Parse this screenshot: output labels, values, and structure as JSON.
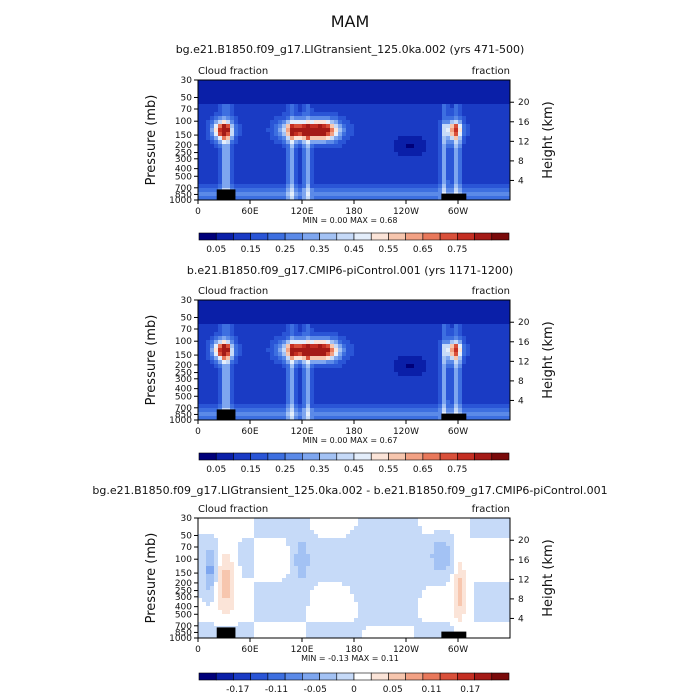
{
  "page_title": "MAM",
  "colors": {
    "cool_blue_dark": "#0a1a8c",
    "cool_blue": "#2a55d6",
    "light_blue": "#a8c8f0",
    "pale": "#e6f0fb",
    "warm_pink": "#f6bfa6",
    "warm_red": "#d2452f",
    "topography": "#000000"
  },
  "chart_data": [
    {
      "type": "heatmap",
      "title": "bg.e21.B1850.f09_g17.LIGtransient_125.0ka.002 (yrs 471-500)",
      "left_label": "Cloud fraction",
      "right_label": "fraction",
      "ylabel": "Pressure (mb)",
      "ylabel_right": "Height (km)",
      "x_ticks": [
        "0",
        "60E",
        "120E",
        "180",
        "120W",
        "60W"
      ],
      "y_ticks": [
        "30",
        "50",
        "70",
        "100",
        "150",
        "200",
        "250",
        "300",
        "400",
        "500",
        "700",
        "850",
        "1000"
      ],
      "y2_ticks": [
        "20",
        "16",
        "12",
        "8",
        "4"
      ],
      "stats": "MIN =    0.00   MAX =    0.68",
      "min": 0.0,
      "max": 0.68,
      "colorbar": {
        "labels": [
          "0.05",
          "0.15",
          "0.25",
          "0.35",
          "0.45",
          "0.55",
          "0.65",
          "0.75"
        ],
        "colors": [
          "#00007a",
          "#0a1fa8",
          "#1a3bc4",
          "#2a55d6",
          "#3d6fe0",
          "#5b8ae8",
          "#7ea6ef",
          "#a3c2f4",
          "#c6daf8",
          "#e4eefb",
          "#fbe4d8",
          "#f7c6ae",
          "#f2a184",
          "#e8785b",
          "#d9503a",
          "#c42e22",
          "#a41a16",
          "#7a0a0a"
        ]
      },
      "pattern": "mean"
    },
    {
      "type": "heatmap",
      "title": "b.e21.B1850.f09_g17.CMIP6-piControl.001 (yrs 1171-1200)",
      "left_label": "Cloud fraction",
      "right_label": "fraction",
      "ylabel": "Pressure (mb)",
      "ylabel_right": "Height (km)",
      "x_ticks": [
        "0",
        "60E",
        "120E",
        "180",
        "120W",
        "60W"
      ],
      "y_ticks": [
        "30",
        "50",
        "70",
        "100",
        "150",
        "200",
        "250",
        "300",
        "400",
        "500",
        "700",
        "850",
        "1000"
      ],
      "y2_ticks": [
        "20",
        "16",
        "12",
        "8",
        "4"
      ],
      "stats": "MIN =    0.00   MAX =    0.67",
      "min": 0.0,
      "max": 0.67,
      "colorbar": {
        "labels": [
          "0.05",
          "0.15",
          "0.25",
          "0.35",
          "0.45",
          "0.55",
          "0.65",
          "0.75"
        ],
        "colors": [
          "#00007a",
          "#0a1fa8",
          "#1a3bc4",
          "#2a55d6",
          "#3d6fe0",
          "#5b8ae8",
          "#7ea6ef",
          "#a3c2f4",
          "#c6daf8",
          "#e4eefb",
          "#fbe4d8",
          "#f7c6ae",
          "#f2a184",
          "#e8785b",
          "#d9503a",
          "#c42e22",
          "#a41a16",
          "#7a0a0a"
        ]
      },
      "pattern": "mean"
    },
    {
      "type": "heatmap",
      "title": "bg.e21.B1850.f09_g17.LIGtransient_125.0ka.002 - b.e21.B1850.f09_g17.CMIP6-piControl.001",
      "left_label": "Cloud fraction",
      "right_label": "fraction",
      "ylabel": "Pressure (mb)",
      "ylabel_right": "Height (km)",
      "x_ticks": [
        "0",
        "60E",
        "120E",
        "180",
        "120W",
        "60W"
      ],
      "y_ticks": [
        "30",
        "50",
        "70",
        "100",
        "150",
        "200",
        "250",
        "300",
        "400",
        "500",
        "700",
        "850",
        "1000"
      ],
      "y2_ticks": [
        "20",
        "16",
        "12",
        "8",
        "4"
      ],
      "stats": "MIN =   -0.13   MAX =    0.11",
      "min": -0.13,
      "max": 0.11,
      "colorbar": {
        "labels": [
          "-0.17",
          "-0.11",
          "-0.05",
          "0",
          "0.05",
          "0.11",
          "0.17"
        ],
        "colors": [
          "#00007a",
          "#0a1fa8",
          "#1a3bc4",
          "#2a55d6",
          "#3d6fe0",
          "#5b8ae8",
          "#7ea6ef",
          "#a3c2f4",
          "#c6daf8",
          "#ffffff",
          "#fbe4d8",
          "#f7c6ae",
          "#f2a184",
          "#e8785b",
          "#d9503a",
          "#c42e22",
          "#a41a16",
          "#7a0a0a"
        ]
      },
      "pattern": "diff"
    }
  ]
}
